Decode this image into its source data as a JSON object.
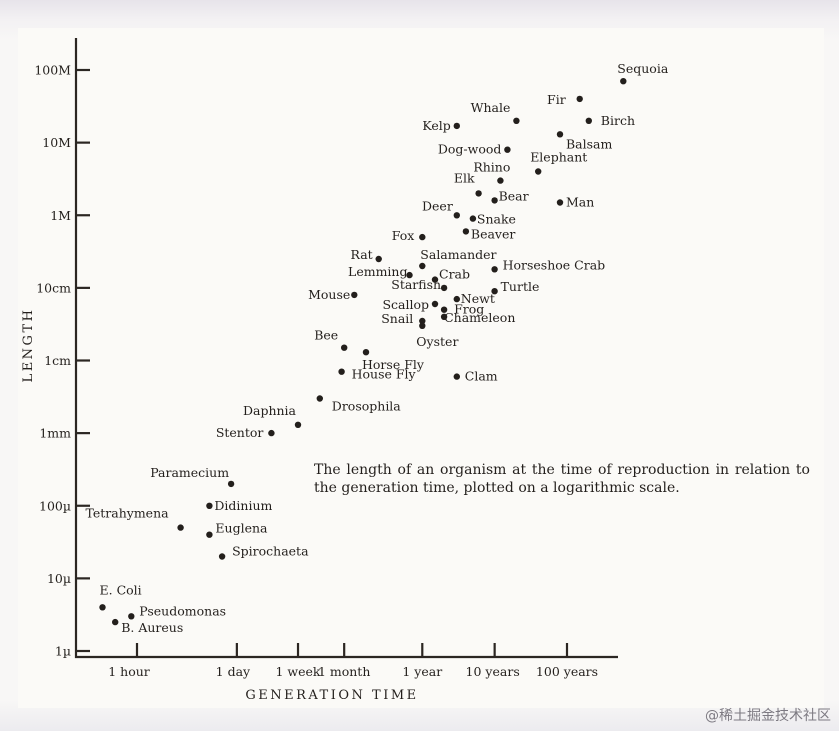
{
  "chart_data": {
    "type": "scatter",
    "title": "",
    "xlabel": "GENERATION TIME",
    "ylabel": "LENGTH",
    "x_scale": "log",
    "y_scale": "log",
    "x_ticks": [
      "1 hour",
      "1 day",
      "1 week",
      "1 month",
      "1 year",
      "10 years",
      "100 years"
    ],
    "y_ticks": [
      "1µ",
      "10µ",
      "100µ",
      "1mm",
      "1cm",
      "10cm",
      "1M",
      "10M",
      "100M"
    ],
    "points": [
      {
        "label": "Sequoia",
        "x": "600 years",
        "y": "70 M"
      },
      {
        "label": "Fir",
        "x": "150 years",
        "y": "40 M"
      },
      {
        "label": "Birch",
        "x": "200 years",
        "y": "20 M"
      },
      {
        "label": "Whale",
        "x": "20 years",
        "y": "20 M"
      },
      {
        "label": "Kelp",
        "x": "3 years",
        "y": "17 M"
      },
      {
        "label": "Balsam",
        "x": "80 years",
        "y": "13 M"
      },
      {
        "label": "Dog-wood",
        "x": "15 years",
        "y": "8 M"
      },
      {
        "label": "Elephant",
        "x": "40 years",
        "y": "4 M"
      },
      {
        "label": "Rhino",
        "x": "12 years",
        "y": "3 M"
      },
      {
        "label": "Elk",
        "x": "6 years",
        "y": "2 M"
      },
      {
        "label": "Bear",
        "x": "10 years",
        "y": "1.6 M"
      },
      {
        "label": "Man",
        "x": "80 years",
        "y": "1.5 M"
      },
      {
        "label": "Deer",
        "x": "3 years",
        "y": "1 M"
      },
      {
        "label": "Snake",
        "x": "5 years",
        "y": "90 cm"
      },
      {
        "label": "Fox",
        "x": "1 year",
        "y": "50 cm"
      },
      {
        "label": "Beaver",
        "x": "4 years",
        "y": "60 cm"
      },
      {
        "label": "Rat",
        "x": "3 months",
        "y": "25 cm"
      },
      {
        "label": "Salamander",
        "x": "1 year",
        "y": "20 cm"
      },
      {
        "label": "Horseshoe Crab",
        "x": "10 years",
        "y": "18 cm"
      },
      {
        "label": "Lemming",
        "x": "8 months",
        "y": "15 cm"
      },
      {
        "label": "Crab",
        "x": "1.5 years",
        "y": "13 cm"
      },
      {
        "label": "Starfish",
        "x": "2 years",
        "y": "10 cm"
      },
      {
        "label": "Turtle",
        "x": "10 years",
        "y": "9 cm"
      },
      {
        "label": "Mouse",
        "x": "6 weeks",
        "y": "8 cm"
      },
      {
        "label": "Newt",
        "x": "3 years",
        "y": "7 cm"
      },
      {
        "label": "Scallop",
        "x": "1.5 years",
        "y": "6 cm"
      },
      {
        "label": "Frog",
        "x": "2 years",
        "y": "5 cm"
      },
      {
        "label": "Snail",
        "x": "1 year",
        "y": "3.5 cm"
      },
      {
        "label": "Chameleon",
        "x": "2 years",
        "y": "4 cm"
      },
      {
        "label": "Oyster",
        "x": "1 year",
        "y": "3 cm"
      },
      {
        "label": "Bee",
        "x": "1 month",
        "y": "1.5 cm"
      },
      {
        "label": "Horse Fly",
        "x": "2 months",
        "y": "1.3 cm"
      },
      {
        "label": "Clam",
        "x": "3 years",
        "y": "6 mm"
      },
      {
        "label": "House Fly",
        "x": "4 weeks",
        "y": "7 mm"
      },
      {
        "label": "Drosophila",
        "x": "2 weeks",
        "y": "3 mm"
      },
      {
        "label": "Daphnia",
        "x": "1 week",
        "y": "1.3 mm"
      },
      {
        "label": "Stentor",
        "x": "3 days",
        "y": "1 mm"
      },
      {
        "label": "Paramecium",
        "x": "20 hours",
        "y": "200 µ"
      },
      {
        "label": "Didinium",
        "x": "10 hours",
        "y": "100 µ"
      },
      {
        "label": "Tetrahymena",
        "x": "4 hours",
        "y": "50 µ"
      },
      {
        "label": "Euglena",
        "x": "10 hours",
        "y": "40 µ"
      },
      {
        "label": "Spirochaeta",
        "x": "15 hours",
        "y": "20 µ"
      },
      {
        "label": "E. Coli",
        "x": "20 minutes",
        "y": "4 µ"
      },
      {
        "label": "Pseudomonas",
        "x": "50 minutes",
        "y": "3 µ"
      },
      {
        "label": "B. Aureus",
        "x": "30 minutes",
        "y": "2.5 µ"
      }
    ],
    "legend": "none",
    "grid": false
  },
  "caption": "The length of an organism at the time of reproduction in relation to the generation time, plotted on a logarithmic scale.",
  "watermark": "@稀土掘金技术社区"
}
